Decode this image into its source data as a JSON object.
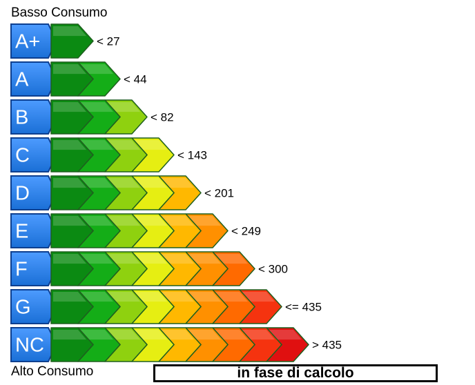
{
  "top_label": "Basso Consumo",
  "bottom_label": "Alto Consumo",
  "status_text": "in fase di calcolo",
  "colors": {
    "class_badge": "#1a6fd6",
    "segments": [
      "#0b8a12",
      "#14ad17",
      "#8fd10f",
      "#e6ee12",
      "#ffb800",
      "#ff9000",
      "#ff6a00",
      "#f5330f",
      "#e01010"
    ]
  },
  "classes": [
    {
      "name": "A+",
      "threshold": "< 27"
    },
    {
      "name": "A",
      "threshold": "< 44"
    },
    {
      "name": "B",
      "threshold": "< 82"
    },
    {
      "name": "C",
      "threshold": "< 143"
    },
    {
      "name": "D",
      "threshold": "< 201"
    },
    {
      "name": "E",
      "threshold": "< 249"
    },
    {
      "name": "F",
      "threshold": "< 300"
    },
    {
      "name": "G",
      "threshold": "<= 435"
    },
    {
      "name": "NC",
      "threshold": "> 435"
    }
  ]
}
